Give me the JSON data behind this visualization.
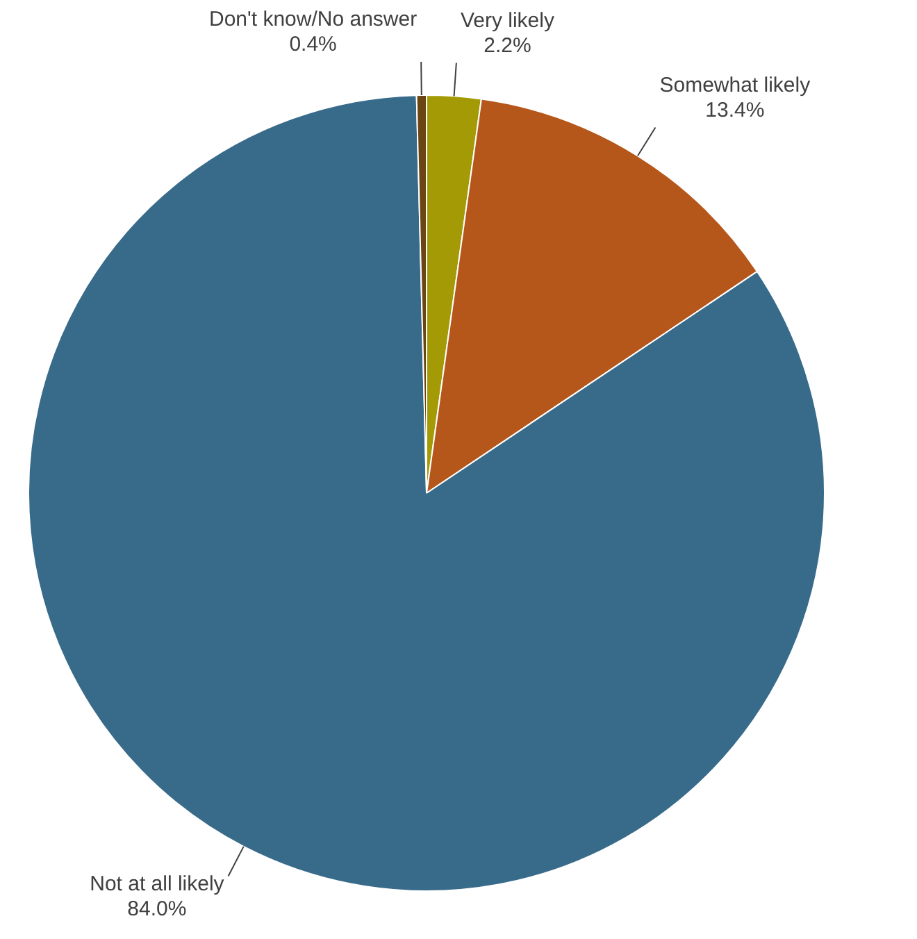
{
  "chart_data": {
    "type": "pie",
    "categories": [
      "Very likely",
      "Somewhat likely",
      "Not at all likely",
      "Don't know/No answer"
    ],
    "values": [
      2.2,
      13.4,
      84.0,
      0.4
    ],
    "colors": [
      "#a39a06",
      "#b5561a",
      "#386b8a",
      "#6b4513"
    ],
    "value_labels": [
      "2.2%",
      "13.4%",
      "84.0%",
      "0.4%"
    ],
    "legend": false
  }
}
